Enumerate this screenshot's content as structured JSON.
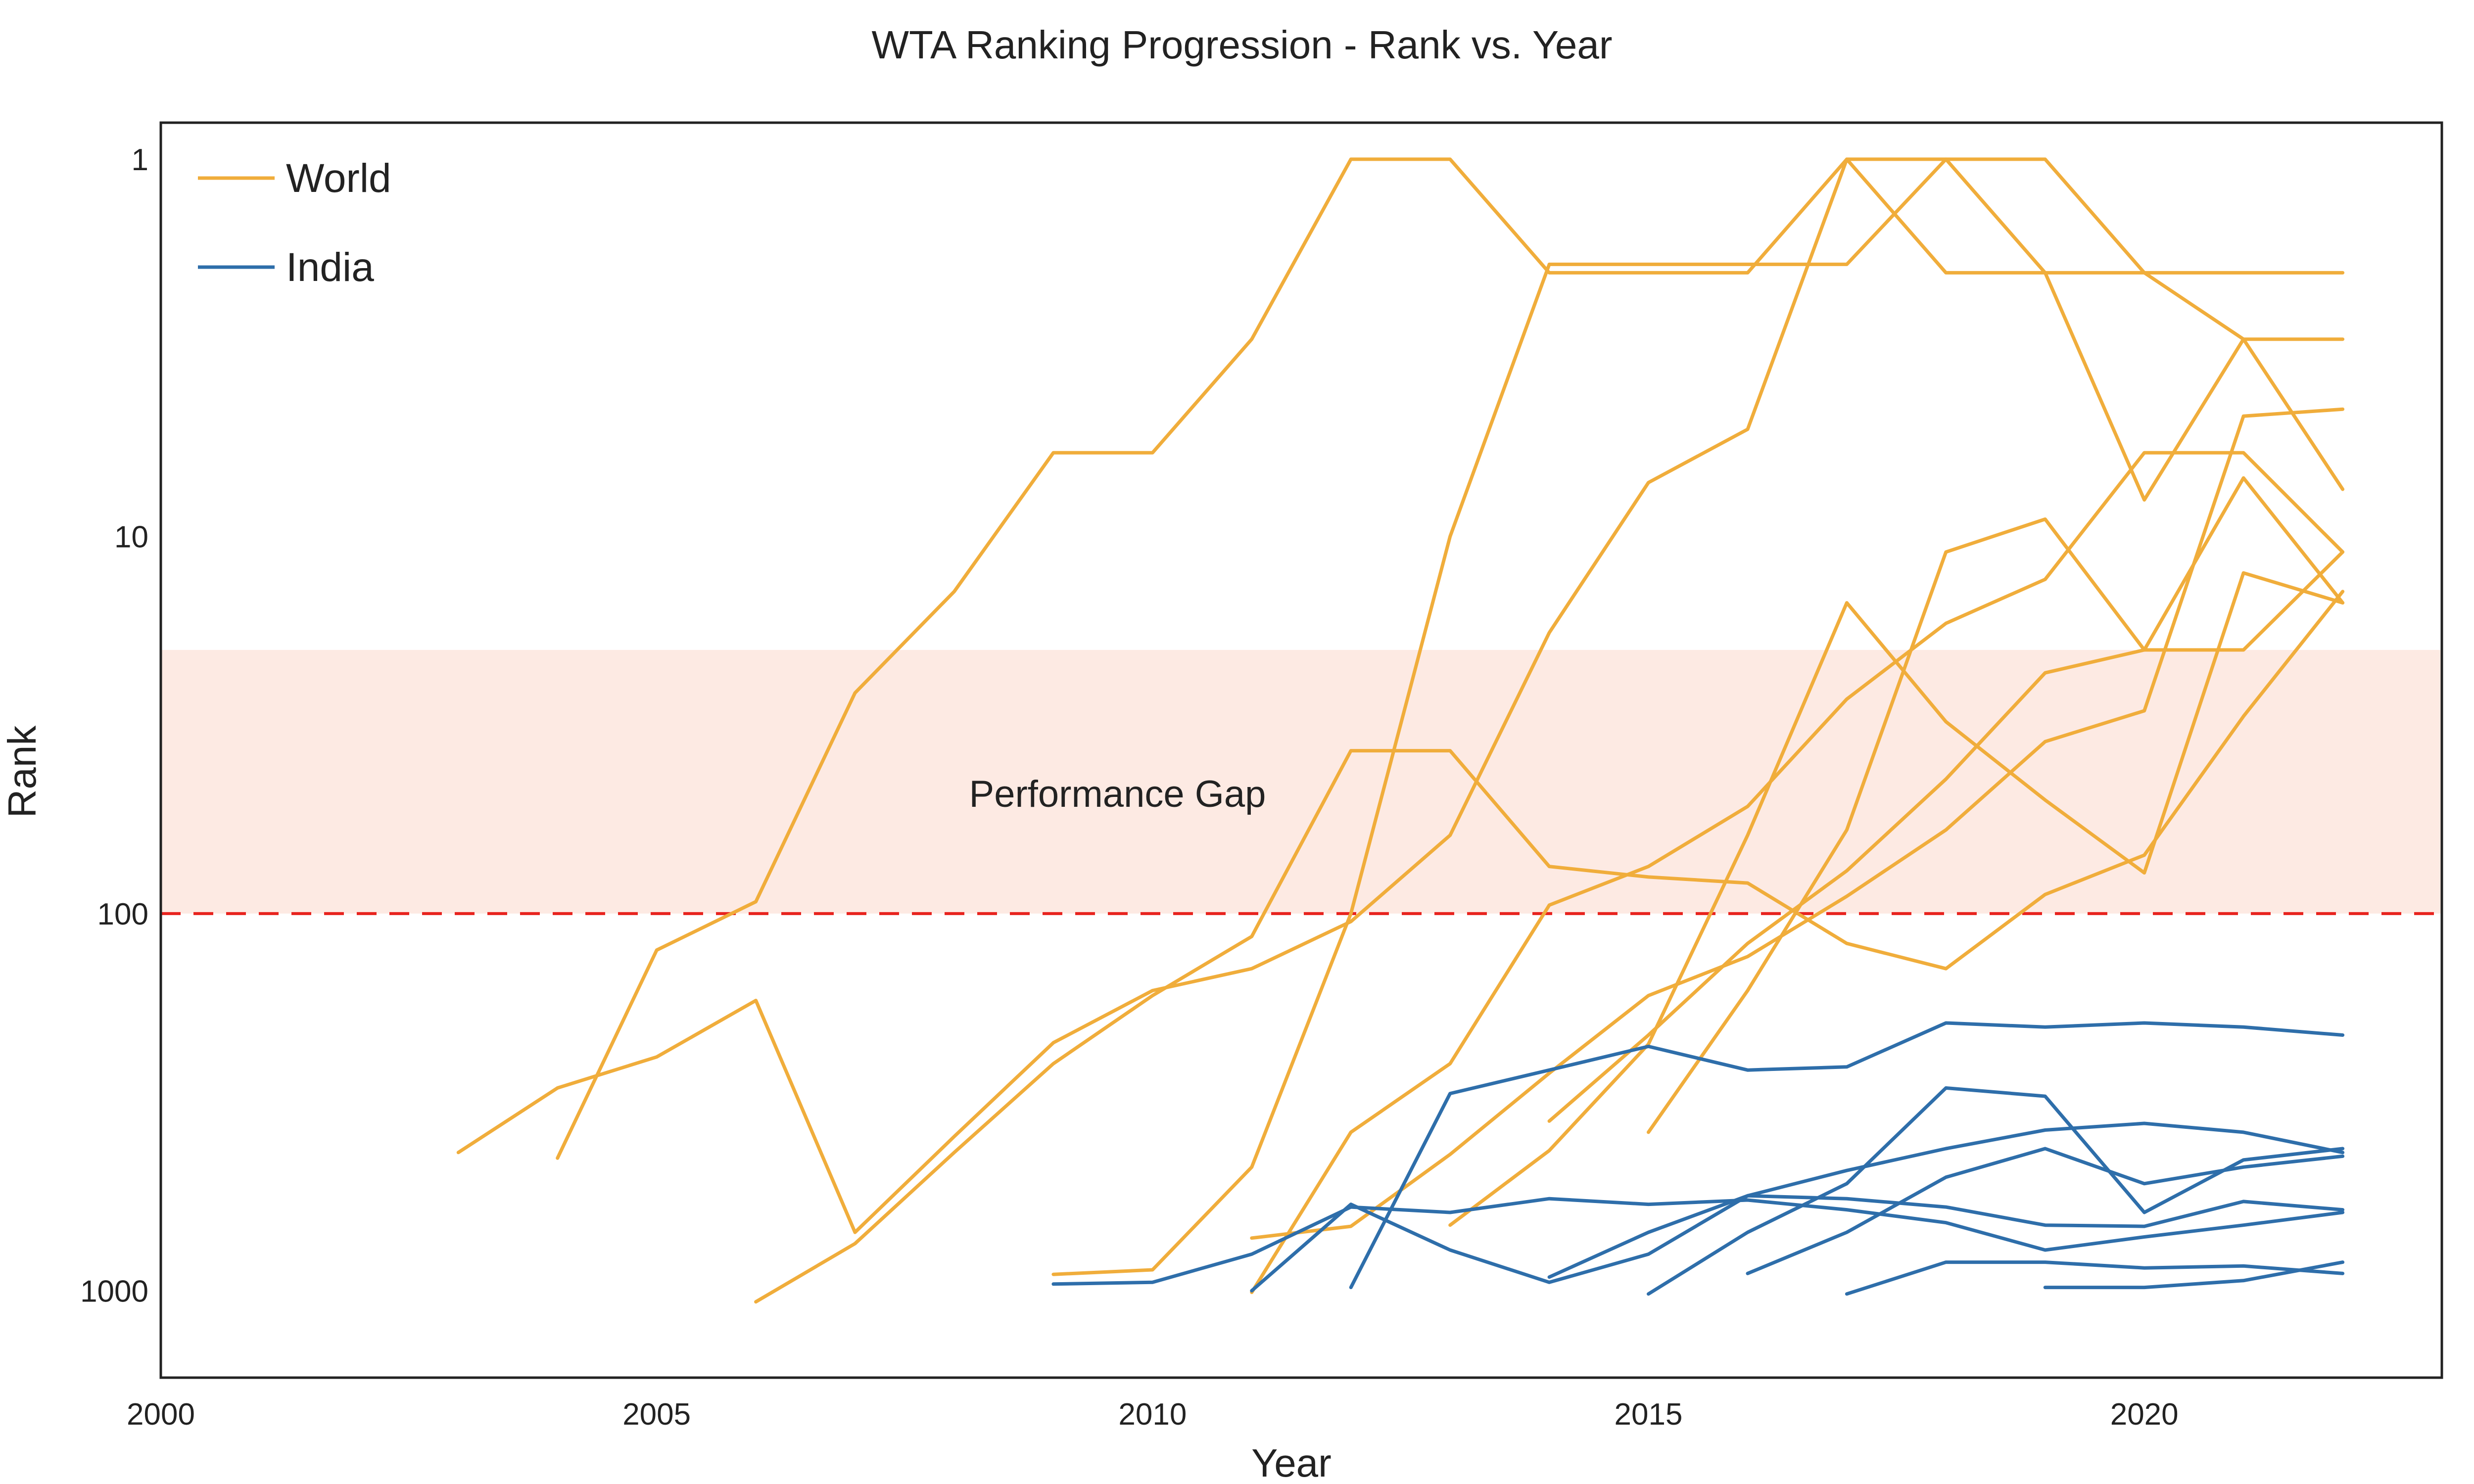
{
  "chart_data": {
    "type": "line",
    "title": "WTA Ranking Progression - Rank vs. Year",
    "xlabel": "Year",
    "ylabel": "Rank",
    "xlim": [
      2000,
      2023
    ],
    "ylim": [
      1700,
      0.8
    ],
    "yscale": "log",
    "x_ticks": [
      2000,
      2005,
      2010,
      2015,
      2020
    ],
    "y_ticks": [
      1,
      10,
      100,
      1000
    ],
    "grid": false,
    "legend": {
      "placement": "top-left",
      "entries": [
        {
          "label": "World",
          "color": "#F0AD3B"
        },
        {
          "label": "India",
          "color": "#2E6EAA"
        }
      ]
    },
    "threshold": {
      "y": 100,
      "color": "#E8231E",
      "style": "dashed"
    },
    "shaded_band": {
      "y_from": 100,
      "y_to": 20,
      "color": "#FDEAE3",
      "label": "Performance Gap"
    },
    "series_groups": [
      {
        "name": "World",
        "color": "#F0AD3B",
        "series": [
          {
            "points": [
              [
                2003,
                430
              ],
              [
                2004,
                290
              ],
              [
                2005,
                240
              ],
              [
                2006,
                170
              ],
              [
                2007,
                700
              ],
              [
                2008,
                390
              ],
              [
                2009,
                220
              ],
              [
                2010,
                160
              ],
              [
                2011,
                140
              ],
              [
                2012,
                105
              ],
              [
                2013,
                62
              ],
              [
                2014,
                18
              ],
              [
                2015,
                7.2
              ],
              [
                2016,
                5.2
              ],
              [
                2017,
                1
              ],
              [
                2018,
                2
              ],
              [
                2019,
                2
              ],
              [
                2020,
                2
              ],
              [
                2021,
                3
              ],
              [
                2022,
                7.5
              ]
            ]
          },
          {
            "points": [
              [
                2004,
                445
              ],
              [
                2005,
                125
              ],
              [
                2006,
                93
              ],
              [
                2007,
                26
              ],
              [
                2008,
                14
              ],
              [
                2009,
                6
              ],
              [
                2010,
                6
              ],
              [
                2011,
                3
              ],
              [
                2012,
                1
              ],
              [
                2013,
                1
              ],
              [
                2014,
                2
              ],
              [
                2015,
                2
              ],
              [
                2016,
                2
              ],
              [
                2017,
                1
              ],
              [
                2018,
                1
              ],
              [
                2019,
                1
              ],
              [
                2020,
                2
              ],
              [
                2021,
                2
              ],
              [
                2022,
                2
              ]
            ]
          },
          {
            "points": [
              [
                2006,
                1070
              ],
              [
                2007,
                750
              ],
              [
                2008,
                430
              ],
              [
                2009,
                250
              ],
              [
                2010,
                165
              ],
              [
                2011,
                115
              ],
              [
                2012,
                37
              ],
              [
                2013,
                37
              ],
              [
                2014,
                75
              ],
              [
                2015,
                80
              ],
              [
                2016,
                83
              ],
              [
                2017,
                120
              ],
              [
                2018,
                140
              ],
              [
                2019,
                89
              ],
              [
                2020,
                70
              ],
              [
                2021,
                30
              ],
              [
                2022,
                14
              ]
            ]
          },
          {
            "points": [
              [
                2009,
                905
              ],
              [
                2010,
                880
              ],
              [
                2011,
                470
              ],
              [
                2012,
                100
              ],
              [
                2013,
                10
              ],
              [
                2014,
                1.9
              ],
              [
                2015,
                1.9
              ],
              [
                2016,
                1.9
              ],
              [
                2017,
                1.9
              ],
              [
                2018,
                1
              ],
              [
                2019,
                2
              ],
              [
                2020,
                8
              ],
              [
                2021,
                3
              ],
              [
                2022,
                3
              ]
            ]
          },
          {
            "points": [
              [
                2011,
                725
              ],
              [
                2012,
                675
              ],
              [
                2013,
                435
              ],
              [
                2014,
                265
              ],
              [
                2015,
                165
              ],
              [
                2016,
                130
              ],
              [
                2017,
                90
              ],
              [
                2018,
                60
              ],
              [
                2019,
                35
              ],
              [
                2020,
                29
              ],
              [
                2021,
                4.8
              ],
              [
                2022,
                4.6
              ]
            ]
          },
          {
            "points": [
              [
                2011,
                1010
              ],
              [
                2012,
                380
              ],
              [
                2013,
                250
              ],
              [
                2014,
                95
              ],
              [
                2015,
                75
              ],
              [
                2016,
                52
              ],
              [
                2017,
                27
              ],
              [
                2018,
                17
              ],
              [
                2019,
                13
              ],
              [
                2020,
                6
              ],
              [
                2021,
                6
              ],
              [
                2022,
                11
              ]
            ]
          },
          {
            "points": [
              [
                2013,
                670
              ],
              [
                2014,
                425
              ],
              [
                2015,
                222
              ],
              [
                2016,
                62
              ],
              [
                2017,
                15
              ],
              [
                2018,
                31
              ],
              [
                2019,
                50
              ],
              [
                2020,
                78
              ],
              [
                2021,
                12.5
              ],
              [
                2022,
                15
              ]
            ]
          },
          {
            "points": [
              [
                2014,
                355
              ],
              [
                2015,
                210
              ],
              [
                2016,
                120
              ],
              [
                2017,
                77
              ],
              [
                2018,
                44
              ],
              [
                2019,
                23
              ],
              [
                2020,
                20
              ],
              [
                2021,
                20
              ],
              [
                2022,
                11
              ]
            ]
          },
          {
            "points": [
              [
                2015,
                380
              ],
              [
                2016,
                160
              ],
              [
                2017,
                60
              ],
              [
                2018,
                11
              ],
              [
                2019,
                9
              ],
              [
                2020,
                20
              ],
              [
                2021,
                7
              ],
              [
                2022,
                15
              ]
            ]
          }
        ]
      },
      {
        "name": "India",
        "color": "#2E6EAA",
        "series": [
          {
            "points": [
              [
                2009,
                960
              ],
              [
                2010,
                950
              ],
              [
                2011,
                800
              ],
              [
                2012,
                600
              ],
              [
                2013,
                620
              ],
              [
                2014,
                570
              ],
              [
                2015,
                590
              ],
              [
                2016,
                575
              ],
              [
                2017,
                610
              ],
              [
                2018,
                660
              ],
              [
                2019,
                780
              ],
              [
                2020,
                720
              ],
              [
                2021,
                670
              ],
              [
                2022,
                620
              ]
            ]
          },
          {
            "points": [
              [
                2011,
                1000
              ],
              [
                2012,
                590
              ],
              [
                2013,
                780
              ],
              [
                2014,
                950
              ],
              [
                2015,
                800
              ],
              [
                2016,
                560
              ],
              [
                2017,
                570
              ],
              [
                2018,
                600
              ],
              [
                2019,
                670
              ],
              [
                2020,
                675
              ],
              [
                2021,
                580
              ],
              [
                2022,
                610
              ]
            ]
          },
          {
            "points": [
              [
                2012,
                980
              ],
              [
                2013,
                300
              ],
              [
                2014,
                260
              ],
              [
                2015,
                225
              ],
              [
                2016,
                260
              ],
              [
                2017,
                255
              ],
              [
                2018,
                195
              ],
              [
                2019,
                200
              ],
              [
                2020,
                195
              ],
              [
                2021,
                200
              ],
              [
                2022,
                210
              ]
            ]
          },
          {
            "points": [
              [
                2014,
                920
              ],
              [
                2015,
                700
              ],
              [
                2016,
                560
              ],
              [
                2017,
                480
              ],
              [
                2018,
                420
              ],
              [
                2019,
                375
              ],
              [
                2020,
                360
              ],
              [
                2021,
                380
              ],
              [
                2022,
                430
              ]
            ]
          },
          {
            "points": [
              [
                2015,
                1020
              ],
              [
                2016,
                700
              ],
              [
                2017,
                520
              ],
              [
                2018,
                290
              ],
              [
                2019,
                305
              ],
              [
                2020,
                620
              ],
              [
                2021,
                450
              ],
              [
                2022,
                420
              ]
            ]
          },
          {
            "points": [
              [
                2016,
                900
              ],
              [
                2017,
                700
              ],
              [
                2018,
                500
              ],
              [
                2019,
                420
              ],
              [
                2020,
                520
              ],
              [
                2021,
                470
              ],
              [
                2022,
                440
              ]
            ]
          },
          {
            "points": [
              [
                2017,
                1020
              ],
              [
                2018,
                840
              ],
              [
                2019,
                840
              ],
              [
                2020,
                870
              ],
              [
                2021,
                860
              ],
              [
                2022,
                900
              ]
            ]
          },
          {
            "points": [
              [
                2019,
                980
              ],
              [
                2020,
                980
              ],
              [
                2021,
                940
              ],
              [
                2022,
                840
              ]
            ]
          }
        ]
      }
    ]
  }
}
